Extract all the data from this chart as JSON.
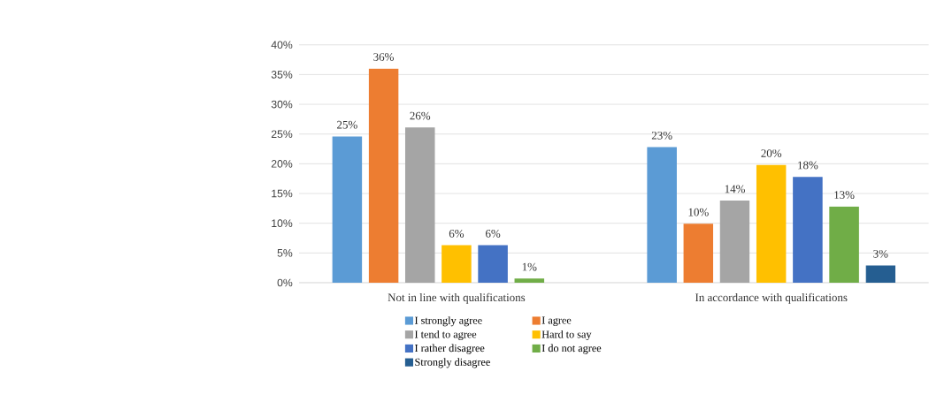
{
  "chart_data": {
    "type": "bar",
    "categories": [
      "Not in line with qualifications",
      "In accordance with qualifications"
    ],
    "series": [
      {
        "name": "I strongly agree",
        "color": "#5b9bd5",
        "values": [
          24.6,
          22.8
        ],
        "value_labels": [
          "25%",
          "23%"
        ]
      },
      {
        "name": "I agree",
        "color": "#ed7d31",
        "values": [
          36,
          9.9
        ],
        "value_labels": [
          "36%",
          "10%"
        ]
      },
      {
        "name": "I tend to agree",
        "color": "#a5a5a5",
        "values": [
          26.1,
          13.8
        ],
        "value_labels": [
          "26%",
          "14%"
        ]
      },
      {
        "name": "Hard to say",
        "color": "#ffc000",
        "values": [
          6.3,
          19.8
        ],
        "value_labels": [
          "6%",
          "20%"
        ]
      },
      {
        "name": "I rather disagree",
        "color": "#4472c4",
        "values": [
          6.3,
          17.8
        ],
        "value_labels": [
          "6%",
          "18%"
        ]
      },
      {
        "name": "I do not agree",
        "color": "#70ad47",
        "values": [
          0.7,
          12.8
        ],
        "value_labels": [
          "1%",
          "13%"
        ]
      },
      {
        "name": "Strongly disagree",
        "color": "#255e91",
        "values": [
          null,
          2.9
        ],
        "value_labels": [
          null,
          "3%"
        ]
      }
    ],
    "ylim": [
      0,
      40
    ],
    "yticks": [
      {
        "value": 0,
        "label": "0%"
      },
      {
        "value": 5,
        "label": "5%"
      },
      {
        "value": 10,
        "label": "10%"
      },
      {
        "value": 15,
        "label": "15%"
      },
      {
        "value": 20,
        "label": "20%"
      },
      {
        "value": 25,
        "label": "25%"
      },
      {
        "value": 30,
        "label": "30%"
      },
      {
        "value": 35,
        "label": "35%"
      },
      {
        "value": 40,
        "label": "40%"
      }
    ],
    "grid": "y",
    "legend": "bottom"
  }
}
